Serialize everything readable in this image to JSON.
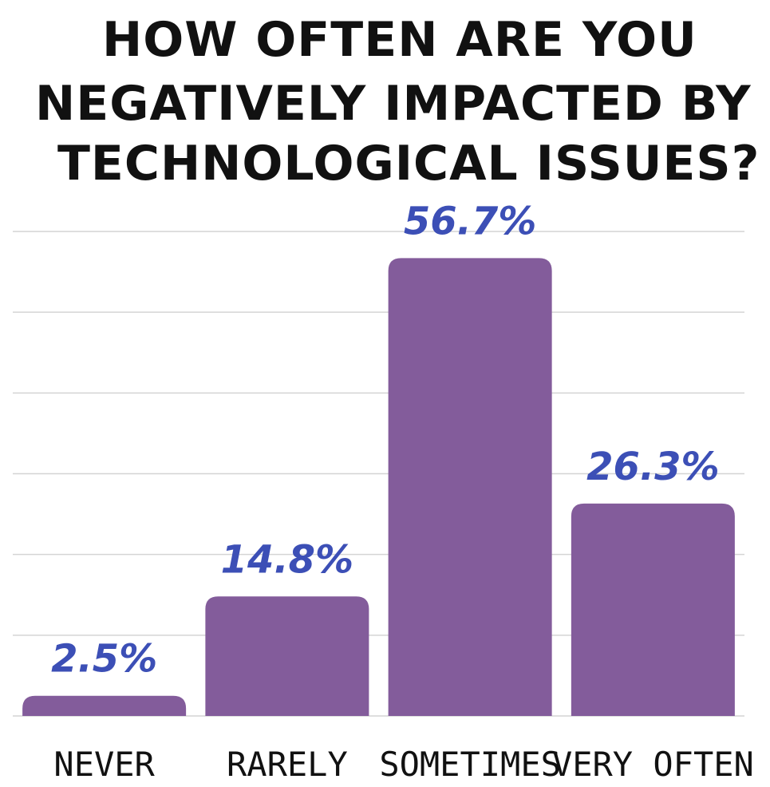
{
  "chart_data": {
    "type": "bar",
    "title_lines": [
      "HOW OFTEN ARE YOU",
      "NEGATIVELY IMPACTED BY",
      "TECHNOLOGICAL ISSUES?"
    ],
    "categories": [
      "NEVER",
      "RARELY",
      "SOMETIMES",
      "VERY OFTEN"
    ],
    "values": [
      2.5,
      14.8,
      56.7,
      26.3
    ],
    "value_labels": [
      "2.5%",
      "14.8%",
      "56.7%",
      "26.3%"
    ],
    "ylim": [
      0,
      60
    ],
    "grid": true,
    "colors": {
      "bar": "#835c9b",
      "value_label": "#3c4fb6",
      "text": "#111111",
      "grid": "#d4d4d4"
    }
  }
}
